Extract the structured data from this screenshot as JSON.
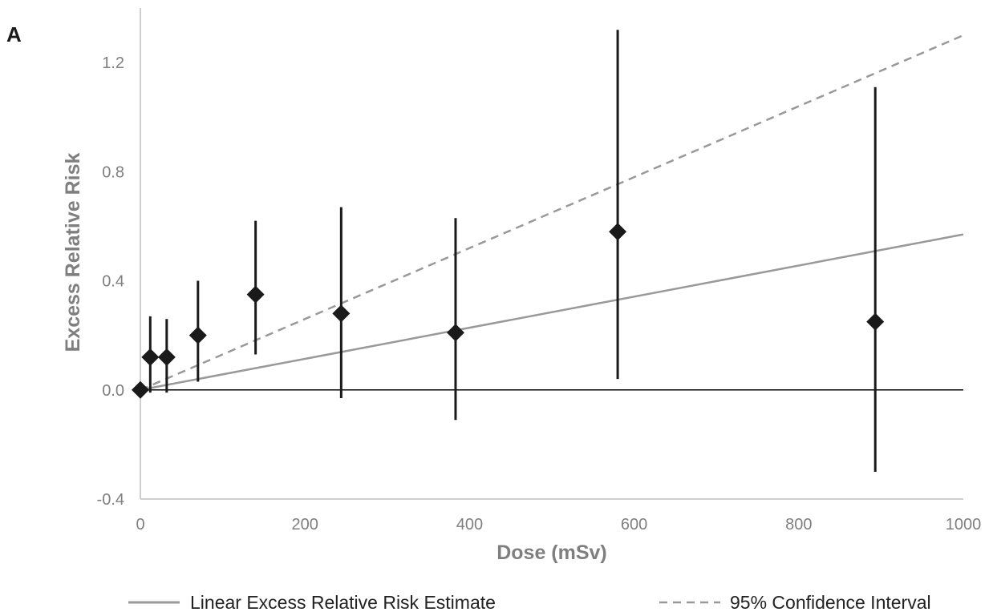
{
  "panel_label": "A",
  "chart_data": {
    "type": "scatter",
    "xlabel": "Dose (mSv)",
    "ylabel": "Excess Relative Risk",
    "xlim": [
      0,
      1000
    ],
    "ylim": [
      -0.4,
      1.4
    ],
    "x_ticks": [
      0,
      200,
      400,
      600,
      800,
      1000
    ],
    "x_tick_labels": [
      "0",
      "200",
      "400",
      "600",
      "800",
      "1000"
    ],
    "y_ticks": [
      -0.4,
      0.0,
      0.4,
      0.8,
      1.2
    ],
    "y_tick_labels": [
      "-0.4",
      "0.0",
      "0.4",
      "0.8",
      "1.2"
    ],
    "grid": false,
    "legend_position": "bottom",
    "points": [
      {
        "x": 0,
        "y": 0.0,
        "lo": 0.0,
        "hi": 0.0
      },
      {
        "x": 12,
        "y": 0.12,
        "lo": -0.01,
        "hi": 0.27
      },
      {
        "x": 32,
        "y": 0.12,
        "lo": -0.01,
        "hi": 0.26
      },
      {
        "x": 70,
        "y": 0.2,
        "lo": 0.03,
        "hi": 0.4
      },
      {
        "x": 140,
        "y": 0.35,
        "lo": 0.13,
        "hi": 0.62
      },
      {
        "x": 244,
        "y": 0.28,
        "lo": -0.03,
        "hi": 0.67
      },
      {
        "x": 383,
        "y": 0.21,
        "lo": -0.11,
        "hi": 0.63
      },
      {
        "x": 580,
        "y": 0.58,
        "lo": 0.04,
        "hi": 1.32
      },
      {
        "x": 893,
        "y": 0.25,
        "lo": -0.3,
        "hi": 1.11
      }
    ],
    "lines": [
      {
        "name": "Linear Excess Relative Risk Estimate",
        "style": "solid",
        "color": "#999999",
        "slope_per_1000": 0.57
      },
      {
        "name": "95% Confidence Interval",
        "style": "dashed",
        "color": "#999999",
        "slope_per_1000": 1.3
      },
      {
        "name": "",
        "style": "solid",
        "color": "#000000",
        "slope_per_1000": 0.0
      }
    ],
    "colors": {
      "markers": "#1a1a1a",
      "errorbars": "#1a1a1a",
      "axis": "#bfbfbf",
      "text": "#7f7f7f"
    }
  }
}
